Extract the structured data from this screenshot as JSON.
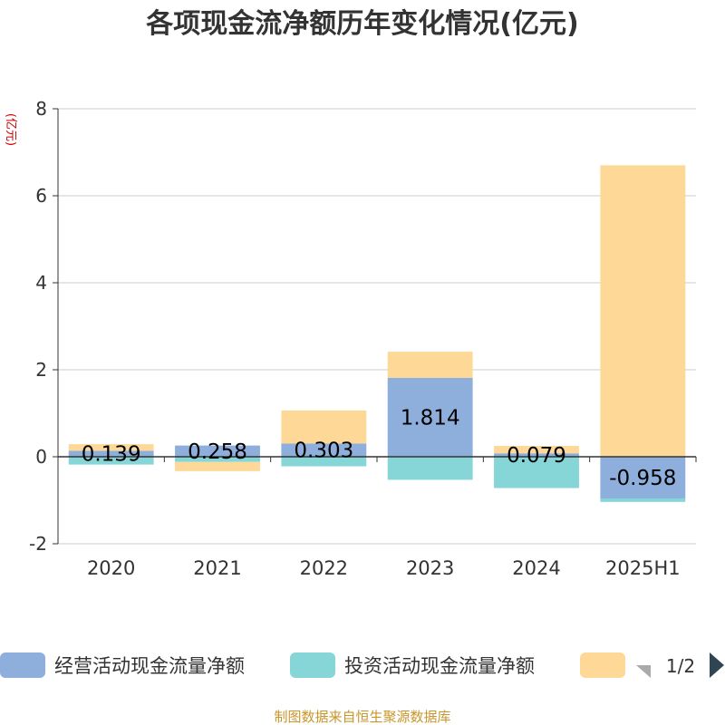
{
  "chart_data": {
    "type": "bar",
    "stacked": true,
    "title": "各项现金流净额历年变化情况(亿元)",
    "ylabel": "(亿元)",
    "categories": [
      "2020",
      "2021",
      "2022",
      "2023",
      "2024",
      "2025H1"
    ],
    "ylim": [
      -2,
      8
    ],
    "yticks": [
      -2,
      0,
      2,
      4,
      6,
      8
    ],
    "grid": true,
    "series": [
      {
        "name": "经营活动现金流量净额",
        "color": "#8eaedb",
        "values": [
          0.139,
          0.258,
          0.303,
          1.814,
          0.079,
          -0.958
        ],
        "labels": [
          "0.139",
          "0.258",
          "0.303",
          "1.814",
          "0.079",
          "-0.958"
        ]
      },
      {
        "name": "投资活动现金流量净额",
        "color": "#86d6d8",
        "values": [
          -0.18,
          -0.12,
          -0.22,
          -0.53,
          -0.72,
          -0.08
        ]
      },
      {
        "name": "",
        "color": "#fdd897",
        "values": [
          0.15,
          -0.21,
          0.76,
          0.6,
          0.17,
          6.7
        ]
      }
    ],
    "legend_position": "bottom",
    "legend_page": "1/2"
  },
  "footer": {
    "source": "制图数据来自恒生聚源数据库"
  }
}
